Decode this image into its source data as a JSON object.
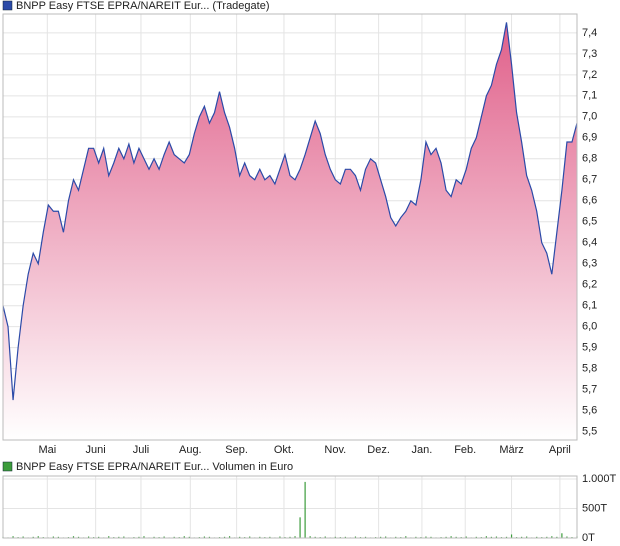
{
  "chart_data": [
    {
      "type": "area",
      "series": [
        {
          "name": "BNPP Easy FTSE EPRA/NAREIT Eur... (Tradegate)",
          "color": "#2b4aa8",
          "values": [
            6.1,
            6.0,
            5.65,
            5.9,
            6.1,
            6.25,
            6.35,
            6.3,
            6.45,
            6.58,
            6.55,
            6.55,
            6.45,
            6.6,
            6.7,
            6.65,
            6.75,
            6.85,
            6.85,
            6.78,
            6.85,
            6.72,
            6.78,
            6.85,
            6.8,
            6.87,
            6.78,
            6.85,
            6.8,
            6.75,
            6.8,
            6.75,
            6.82,
            6.88,
            6.82,
            6.8,
            6.78,
            6.82,
            6.92,
            7.0,
            7.05,
            6.97,
            7.02,
            7.12,
            7.02,
            6.95,
            6.85,
            6.72,
            6.78,
            6.72,
            6.7,
            6.75,
            6.7,
            6.72,
            6.68,
            6.75,
            6.82,
            6.72,
            6.7,
            6.75,
            6.82,
            6.9,
            6.98,
            6.92,
            6.82,
            6.75,
            6.7,
            6.68,
            6.75,
            6.75,
            6.72,
            6.65,
            6.75,
            6.8,
            6.78,
            6.7,
            6.62,
            6.52,
            6.48,
            6.52,
            6.55,
            6.6,
            6.58,
            6.7,
            6.88,
            6.82,
            6.85,
            6.78,
            6.65,
            6.62,
            6.7,
            6.68,
            6.75,
            6.85,
            6.9,
            7.0,
            7.1,
            7.15,
            7.25,
            7.32,
            7.45,
            7.25,
            7.02,
            6.88,
            6.72,
            6.65,
            6.55,
            6.4,
            6.35,
            6.25,
            6.45,
            6.65,
            6.88,
            6.88,
            6.97
          ]
        }
      ],
      "fill_color": "#e0608a",
      "xlim": [
        0,
        114
      ],
      "xticks": [
        {
          "value": 8.8,
          "label": "Mai"
        },
        {
          "value": 18.4,
          "label": "Juni"
        },
        {
          "value": 27.4,
          "label": "Juli"
        },
        {
          "value": 37.2,
          "label": "Aug."
        },
        {
          "value": 46.4,
          "label": "Sep."
        },
        {
          "value": 55.8,
          "label": "Okt."
        },
        {
          "value": 66,
          "label": "Nov."
        },
        {
          "value": 74.6,
          "label": "Dez."
        },
        {
          "value": 83.2,
          "label": "Jan."
        },
        {
          "value": 91.8,
          "label": "Feb."
        },
        {
          "value": 101,
          "label": "März"
        },
        {
          "value": 110.6,
          "label": "April"
        }
      ],
      "ylim": [
        5.46,
        7.49
      ],
      "yticks": [
        {
          "value": 5.5,
          "label": "5,5"
        },
        {
          "value": 5.6,
          "label": "5,6"
        },
        {
          "value": 5.7,
          "label": "5,7"
        },
        {
          "value": 5.8,
          "label": "5,8"
        },
        {
          "value": 5.9,
          "label": "5,9"
        },
        {
          "value": 6.0,
          "label": "6,0"
        },
        {
          "value": 6.1,
          "label": "6,1"
        },
        {
          "value": 6.2,
          "label": "6,2"
        },
        {
          "value": 6.3,
          "label": "6,3"
        },
        {
          "value": 6.4,
          "label": "6,4"
        },
        {
          "value": 6.5,
          "label": "6,5"
        },
        {
          "value": 6.6,
          "label": "6,6"
        },
        {
          "value": 6.7,
          "label": "6,7"
        },
        {
          "value": 6.8,
          "label": "6,8"
        },
        {
          "value": 6.9,
          "label": "6,9"
        },
        {
          "value": 7.0,
          "label": "7,0"
        },
        {
          "value": 7.1,
          "label": "7,1"
        },
        {
          "value": 7.2,
          "label": "7,2"
        },
        {
          "value": 7.3,
          "label": "7,3"
        },
        {
          "value": 7.4,
          "label": "7,4"
        }
      ],
      "grid": true
    },
    {
      "type": "bar",
      "series": [
        {
          "name": "BNPP Easy FTSE EPRA/NAREIT Eur... Volumen in Euro",
          "color": "#3c9c3c",
          "values": [
            20,
            10,
            30,
            15,
            25,
            10,
            20,
            30,
            15,
            10,
            25,
            20,
            10,
            15,
            30,
            20,
            10,
            25,
            15,
            20,
            10,
            30,
            15,
            20,
            25,
            10,
            15,
            20,
            30,
            10,
            20,
            15,
            25,
            10,
            20,
            15,
            30,
            20,
            10,
            15,
            25,
            20,
            10,
            15,
            20,
            30,
            10,
            20,
            15,
            25,
            10,
            20,
            15,
            20,
            10,
            25,
            15,
            20,
            30,
            350,
            950,
            30,
            20,
            15,
            25,
            10,
            20,
            15,
            20,
            10,
            25,
            15,
            20,
            10,
            15,
            20,
            25,
            10,
            20,
            15,
            30,
            10,
            20,
            15,
            25,
            20,
            10,
            15,
            20,
            30,
            20,
            15,
            25,
            10,
            20,
            15,
            30,
            20,
            25,
            15,
            20,
            60,
            15,
            20,
            25,
            10,
            20,
            15,
            20,
            30,
            20,
            80,
            25,
            15,
            30
          ]
        }
      ],
      "xlim": [
        0,
        114
      ],
      "ylim": [
        0,
        1050
      ],
      "yticks": [
        {
          "value": 0,
          "label": "0T"
        },
        {
          "value": 500,
          "label": "500T"
        },
        {
          "value": 1000,
          "label": "1.000T"
        }
      ],
      "grid": true
    }
  ]
}
